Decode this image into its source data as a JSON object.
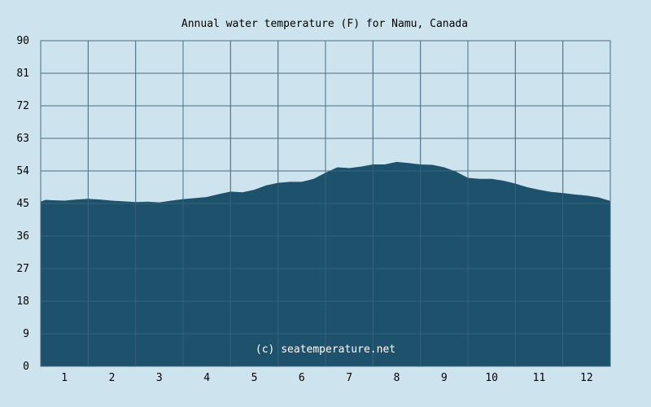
{
  "title": "Annual water temperature (F) for Namu, Canada",
  "watermark": "(c) seatemperature.net",
  "colors": {
    "background": "#cde3ee",
    "fill": "#1e516b",
    "grid": "#4d6f86",
    "text": "#000000"
  },
  "chart_data": {
    "type": "area",
    "title": "Annual water temperature (F) for Namu, Canada",
    "xlabel": "",
    "ylabel": "",
    "xlim": [
      0.5,
      12.5
    ],
    "ylim": [
      0,
      90
    ],
    "x_ticks": [
      1,
      2,
      3,
      4,
      5,
      6,
      7,
      8,
      9,
      10,
      11,
      12
    ],
    "y_ticks": [
      0,
      9,
      18,
      27,
      36,
      45,
      54,
      63,
      72,
      81,
      90
    ],
    "grid": true,
    "x": [
      0.5,
      0.6,
      0.75,
      1.0,
      1.25,
      1.5,
      1.75,
      2.0,
      2.25,
      2.5,
      2.75,
      3.0,
      3.25,
      3.5,
      3.75,
      4.0,
      4.25,
      4.5,
      4.75,
      5.0,
      5.25,
      5.5,
      5.75,
      6.0,
      6.25,
      6.5,
      6.75,
      7.0,
      7.25,
      7.5,
      7.75,
      8.0,
      8.25,
      8.5,
      8.75,
      9.0,
      9.25,
      9.5,
      9.75,
      10.0,
      10.25,
      10.5,
      10.75,
      11.0,
      11.25,
      11.5,
      11.75,
      12.0,
      12.25,
      12.5
    ],
    "values": [
      45.5,
      46.0,
      45.9,
      45.8,
      46.1,
      46.3,
      46.1,
      45.8,
      45.6,
      45.4,
      45.5,
      45.3,
      45.8,
      46.2,
      46.5,
      46.8,
      47.6,
      48.3,
      48.1,
      48.8,
      50.0,
      50.7,
      51.0,
      51.0,
      51.8,
      53.5,
      55.0,
      54.8,
      55.2,
      55.8,
      55.8,
      56.5,
      56.2,
      55.8,
      55.7,
      55.0,
      53.8,
      52.1,
      51.8,
      51.8,
      51.3,
      50.5,
      49.5,
      48.8,
      48.2,
      47.9,
      47.5,
      47.2,
      46.7,
      45.7
    ]
  }
}
